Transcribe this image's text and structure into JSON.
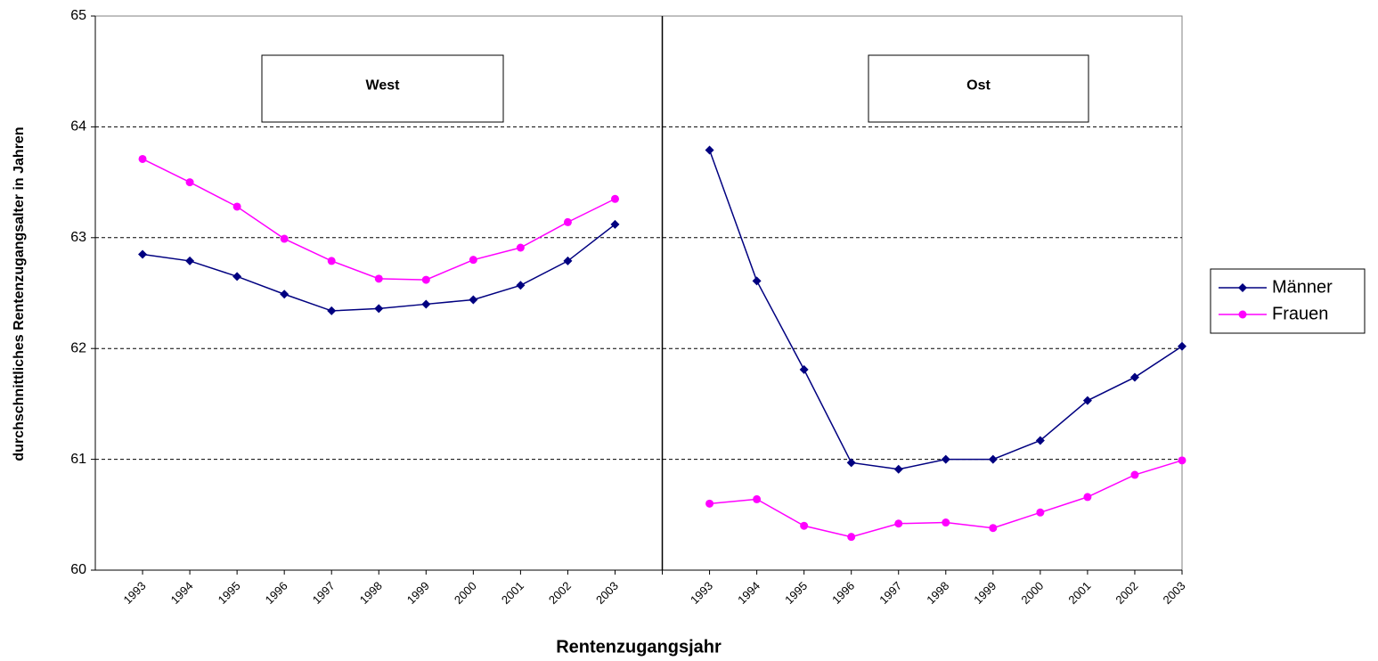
{
  "chart_data": {
    "type": "line",
    "y_label": "durchschnittliches Rentenzugangsalter in Jahren",
    "x_label": "Rentenzugangsjahr",
    "annotations": [
      "West",
      "Ost"
    ],
    "categories": [
      "1993",
      "1994",
      "1995",
      "1996",
      "1997",
      "1998",
      "1999",
      "2000",
      "2001",
      "2002",
      "2003",
      null,
      "1993",
      "1994",
      "1995",
      "1996",
      "1997",
      "1998",
      "1999",
      "2000",
      "2001",
      "2002",
      "2003"
    ],
    "series": [
      {
        "name": "Männer",
        "color": "#000080",
        "marker": "diamond",
        "values": [
          62.85,
          62.79,
          62.65,
          62.49,
          62.34,
          62.36,
          62.4,
          62.44,
          62.57,
          62.79,
          63.12,
          null,
          63.79,
          62.61,
          61.81,
          60.97,
          60.91,
          61.0,
          61.0,
          61.17,
          61.53,
          61.74,
          62.02
        ]
      },
      {
        "name": "Frauen",
        "color": "#ff00ff",
        "marker": "circle",
        "values": [
          63.71,
          63.5,
          63.28,
          62.99,
          62.79,
          62.63,
          62.62,
          62.8,
          62.91,
          63.14,
          63.35,
          null,
          60.6,
          60.64,
          60.4,
          60.3,
          60.42,
          60.43,
          60.38,
          60.52,
          60.66,
          60.86,
          60.99
        ]
      }
    ],
    "ylim": [
      60,
      65
    ],
    "yticks": [
      60,
      61,
      62,
      63,
      64,
      65
    ],
    "grid": true,
    "legend": "right"
  }
}
